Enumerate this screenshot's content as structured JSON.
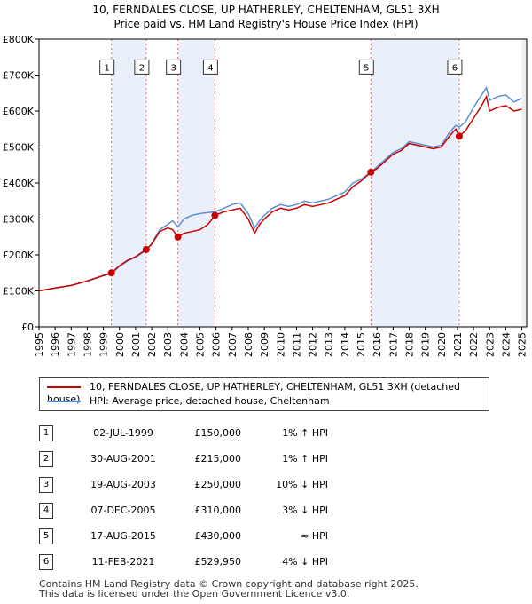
{
  "title_line1": "10, FERNDALES CLOSE, UP HATHERLEY, CHELTENHAM, GL51 3XH",
  "title_line2": "Price paid vs. HM Land Registry's House Price Index (HPI)",
  "chart_data": {
    "type": "line",
    "title": "10, FERNDALES CLOSE, UP HATHERLEY, CHELTENHAM, GL51 3XH — Price paid vs. HM Land Registry's House Price Index (HPI)",
    "xlim": [
      1995,
      2025.3
    ],
    "ylim": [
      0,
      800000
    ],
    "x_ticks": [
      1995,
      1996,
      1997,
      1998,
      1999,
      2000,
      2001,
      2002,
      2003,
      2004,
      2005,
      2006,
      2007,
      2008,
      2009,
      2010,
      2011,
      2012,
      2013,
      2014,
      2015,
      2016,
      2017,
      2018,
      2019,
      2020,
      2021,
      2022,
      2023,
      2024,
      2025
    ],
    "y_ticks": [
      0,
      100000,
      200000,
      300000,
      400000,
      500000,
      600000,
      700000,
      800000
    ],
    "y_tick_labels": [
      "£0",
      "£100K",
      "£200K",
      "£300K",
      "£400K",
      "£500K",
      "£600K",
      "£700K",
      "£800K"
    ],
    "grid": false,
    "series": [
      {
        "name": "10, FERNDALES CLOSE, UP HATHERLEY, CHELTENHAM, GL51 3XH (detached house)",
        "color": "#cc0000",
        "x": [
          1995.0,
          1996.0,
          1997.0,
          1998.0,
          1999.0,
          1999.5,
          2000.0,
          2000.5,
          2001.0,
          2001.66,
          2002.0,
          2002.5,
          2003.0,
          2003.3,
          2003.63,
          2004.0,
          2004.5,
          2005.0,
          2005.5,
          2005.93,
          2006.5,
          2007.0,
          2007.5,
          2008.0,
          2008.4,
          2008.7,
          2009.0,
          2009.5,
          2010.0,
          2010.5,
          2011.0,
          2011.5,
          2012.0,
          2012.5,
          2013.0,
          2013.5,
          2014.0,
          2014.5,
          2015.0,
          2015.62,
          2016.0,
          2016.5,
          2017.0,
          2017.5,
          2018.0,
          2018.5,
          2019.0,
          2019.5,
          2020.0,
          2020.5,
          2020.9,
          2021.11,
          2021.5,
          2022.0,
          2022.5,
          2022.8,
          2023.0,
          2023.5,
          2024.0,
          2024.5,
          2025.0
        ],
        "y": [
          100000,
          108000,
          115000,
          128000,
          143000,
          150000,
          170000,
          185000,
          195000,
          215000,
          230000,
          265000,
          275000,
          270000,
          250000,
          260000,
          265000,
          270000,
          285000,
          310000,
          320000,
          325000,
          330000,
          300000,
          260000,
          285000,
          300000,
          320000,
          330000,
          325000,
          330000,
          340000,
          335000,
          340000,
          345000,
          355000,
          365000,
          390000,
          405000,
          430000,
          440000,
          460000,
          480000,
          490000,
          510000,
          505000,
          500000,
          495000,
          500000,
          530000,
          550000,
          529950,
          545000,
          580000,
          615000,
          640000,
          600000,
          610000,
          615000,
          600000,
          605000
        ]
      },
      {
        "name": "HPI: Average price, detached house, Cheltenham",
        "color": "#5b8fd4",
        "x": [
          1995.0,
          1996.0,
          1997.0,
          1998.0,
          1999.0,
          1999.5,
          2000.0,
          2000.5,
          2001.0,
          2001.66,
          2002.0,
          2002.5,
          2003.0,
          2003.3,
          2003.63,
          2004.0,
          2004.5,
          2005.0,
          2005.5,
          2005.93,
          2006.5,
          2007.0,
          2007.5,
          2008.0,
          2008.4,
          2008.7,
          2009.0,
          2009.5,
          2010.0,
          2010.5,
          2011.0,
          2011.5,
          2012.0,
          2012.5,
          2013.0,
          2013.5,
          2014.0,
          2014.5,
          2015.0,
          2015.62,
          2016.0,
          2016.5,
          2017.0,
          2017.5,
          2018.0,
          2018.5,
          2019.0,
          2019.5,
          2020.0,
          2020.5,
          2020.9,
          2021.11,
          2021.5,
          2022.0,
          2022.5,
          2022.8,
          2023.0,
          2023.5,
          2024.0,
          2024.5,
          2025.0
        ],
        "y": [
          100000,
          108000,
          115000,
          127000,
          142000,
          148000,
          168000,
          183000,
          193000,
          213000,
          232000,
          270000,
          285000,
          295000,
          278000,
          300000,
          310000,
          315000,
          318000,
          320000,
          330000,
          340000,
          345000,
          315000,
          275000,
          295000,
          310000,
          330000,
          340000,
          335000,
          340000,
          350000,
          345000,
          350000,
          355000,
          365000,
          375000,
          400000,
          410000,
          430000,
          445000,
          465000,
          485000,
          495000,
          515000,
          510000,
          505000,
          500000,
          505000,
          540000,
          560000,
          555000,
          570000,
          610000,
          645000,
          665000,
          630000,
          640000,
          645000,
          625000,
          635000
        ]
      }
    ],
    "transactions": [
      {
        "num": "1",
        "date": "02-JUL-1999",
        "price": "£150,000",
        "hpi": "1% ↑ HPI",
        "x": 1999.5,
        "y": 150000
      },
      {
        "num": "2",
        "date": "30-AUG-2001",
        "price": "£215,000",
        "hpi": "1% ↑ HPI",
        "x": 2001.66,
        "y": 215000
      },
      {
        "num": "3",
        "date": "19-AUG-2003",
        "price": "£250,000",
        "hpi": "10% ↓ HPI",
        "x": 2003.63,
        "y": 250000
      },
      {
        "num": "4",
        "date": "07-DEC-2005",
        "price": "£310,000",
        "hpi": "3% ↓ HPI",
        "x": 2005.93,
        "y": 310000
      },
      {
        "num": "5",
        "date": "17-AUG-2015",
        "price": "£430,000",
        "hpi": "≈ HPI",
        "x": 2015.62,
        "y": 430000
      },
      {
        "num": "6",
        "date": "11-FEB-2021",
        "price": "£529,950",
        "hpi": "4% ↓ HPI",
        "x": 2021.11,
        "y": 529950
      }
    ],
    "shaded_spans": [
      [
        1999.5,
        2001.66
      ],
      [
        2003.63,
        2005.93
      ],
      [
        2015.62,
        2021.11
      ]
    ],
    "legend_position": "below"
  },
  "legend": {
    "line1": "10, FERNDALES CLOSE, UP HATHERLEY, CHELTENHAM, GL51 3XH (detached house)",
    "line2": "HPI: Average price, detached house, Cheltenham"
  },
  "footer": {
    "line1": "Contains HM Land Registry data © Crown copyright and database right 2025.",
    "line2": "This data is licensed under the Open Government Licence v3.0."
  }
}
